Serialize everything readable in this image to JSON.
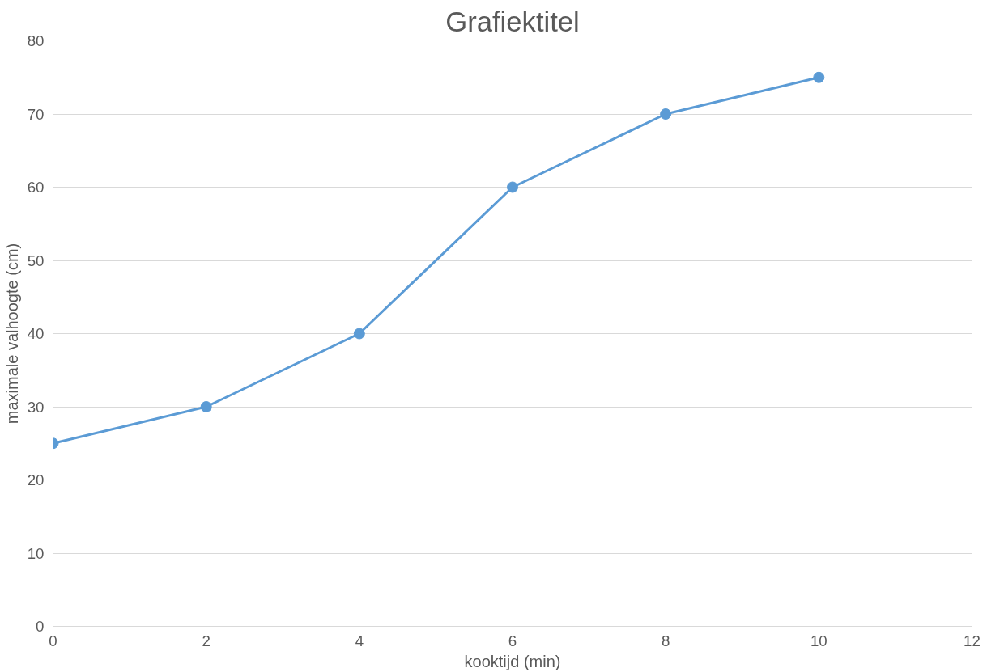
{
  "chart_data": {
    "type": "line",
    "title": "Grafiektitel",
    "xlabel": "kooktijd (min)",
    "ylabel": "maximale valhoogte (cm)",
    "x": [
      0,
      2,
      4,
      6,
      8,
      10
    ],
    "series": [
      {
        "color": "#5b9bd5",
        "values": [
          25,
          30,
          40,
          60,
          70,
          75
        ]
      }
    ],
    "xlim": [
      0,
      12
    ],
    "xticks": [
      0,
      2,
      4,
      6,
      8,
      10,
      12
    ],
    "ylim": [
      0,
      80
    ],
    "yticks": [
      0,
      10,
      20,
      30,
      40,
      50,
      60,
      70,
      80
    ],
    "grid": true,
    "marker": "circle",
    "line_style": "solid"
  }
}
